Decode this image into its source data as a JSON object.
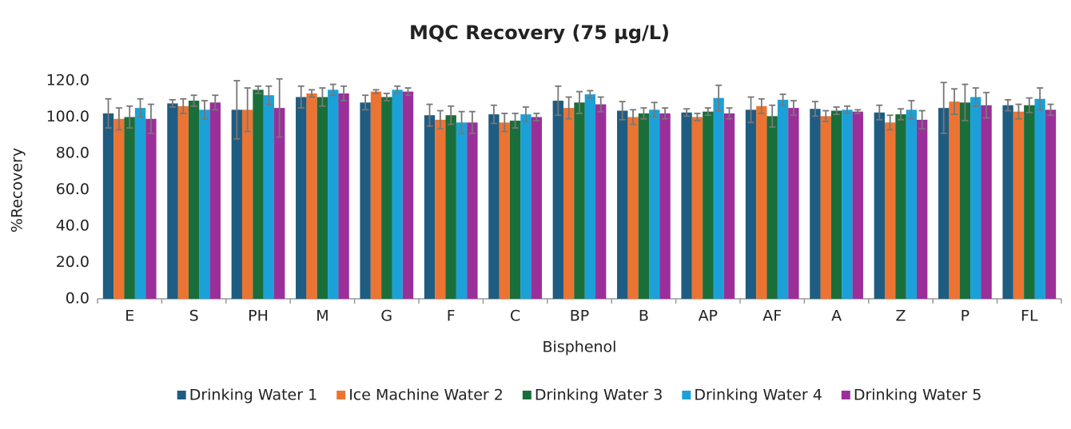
{
  "chart_data": {
    "type": "bar",
    "title": "MQC Recovery (75 µg/L)",
    "x_label": "Bisphenol",
    "y_label": "%Recovery",
    "categories": [
      "E",
      "S",
      "PH",
      "M",
      "G",
      "F",
      "C",
      "BP",
      "B",
      "AP",
      "AF",
      "A",
      "Z",
      "P",
      "FL"
    ],
    "series": [
      {
        "name": "Drinking Water 1",
        "color": "#1f5c82",
        "values": [
          102,
          107.5,
          104,
          111,
          108,
          101,
          101.5,
          109,
          103.5,
          102.5,
          104,
          104.5,
          102.5,
          105,
          106.5
        ],
        "errors": [
          8,
          2,
          16,
          6,
          4,
          6,
          5,
          8,
          5,
          2,
          7,
          4,
          4,
          14,
          3
        ]
      },
      {
        "name": "Ice Machine Water 2",
        "color": "#ec7433",
        "values": [
          99,
          106,
          104,
          113,
          114,
          98.5,
          97,
          105,
          100,
          100,
          106,
          100.5,
          97,
          108.5,
          103
        ],
        "errors": [
          6,
          4,
          12,
          2,
          1,
          5,
          5,
          6,
          4,
          2,
          4,
          3,
          4,
          7,
          4
        ]
      },
      {
        "name": "Drinking Water 3",
        "color": "#1a6e3a",
        "values": [
          100,
          109,
          115,
          111,
          111,
          101,
          98,
          108,
          102,
          103,
          100.5,
          103.5,
          101.5,
          108,
          106.5
        ],
        "errors": [
          6,
          3,
          2,
          5,
          2,
          5,
          4,
          6,
          3,
          2,
          6,
          2,
          3,
          10,
          4
        ]
      },
      {
        "name": "Drinking Water 4",
        "color": "#1ba1d8",
        "values": [
          105,
          104,
          112,
          115,
          115,
          97,
          101.5,
          112.5,
          104,
          110.5,
          109.5,
          104,
          104,
          111,
          110
        ],
        "errors": [
          5,
          5,
          5,
          3,
          2,
          6,
          4,
          2,
          4,
          7,
          3,
          2,
          5,
          5,
          6
        ]
      },
      {
        "name": "Drinking Water 5",
        "color": "#9b2f9a",
        "values": [
          99,
          108,
          105,
          113,
          114,
          97,
          100,
          107,
          102,
          102,
          105,
          103,
          98.5,
          106.5,
          104
        ],
        "errors": [
          8,
          4,
          16,
          4,
          2,
          6,
          2,
          4,
          3,
          3,
          4,
          1,
          5,
          7,
          3
        ]
      }
    ],
    "ylim": [
      0,
      120
    ],
    "yticks": [
      {
        "value": 0,
        "label": "0.0"
      },
      {
        "value": 20,
        "label": "20.0"
      },
      {
        "value": 40,
        "label": "40.0"
      },
      {
        "value": 60,
        "label": "60.0"
      },
      {
        "value": 80,
        "label": "80.0"
      },
      {
        "value": 100,
        "label": "100.0"
      },
      {
        "value": 120,
        "label": "120.0"
      }
    ],
    "grid": false,
    "legend": "bottom"
  }
}
